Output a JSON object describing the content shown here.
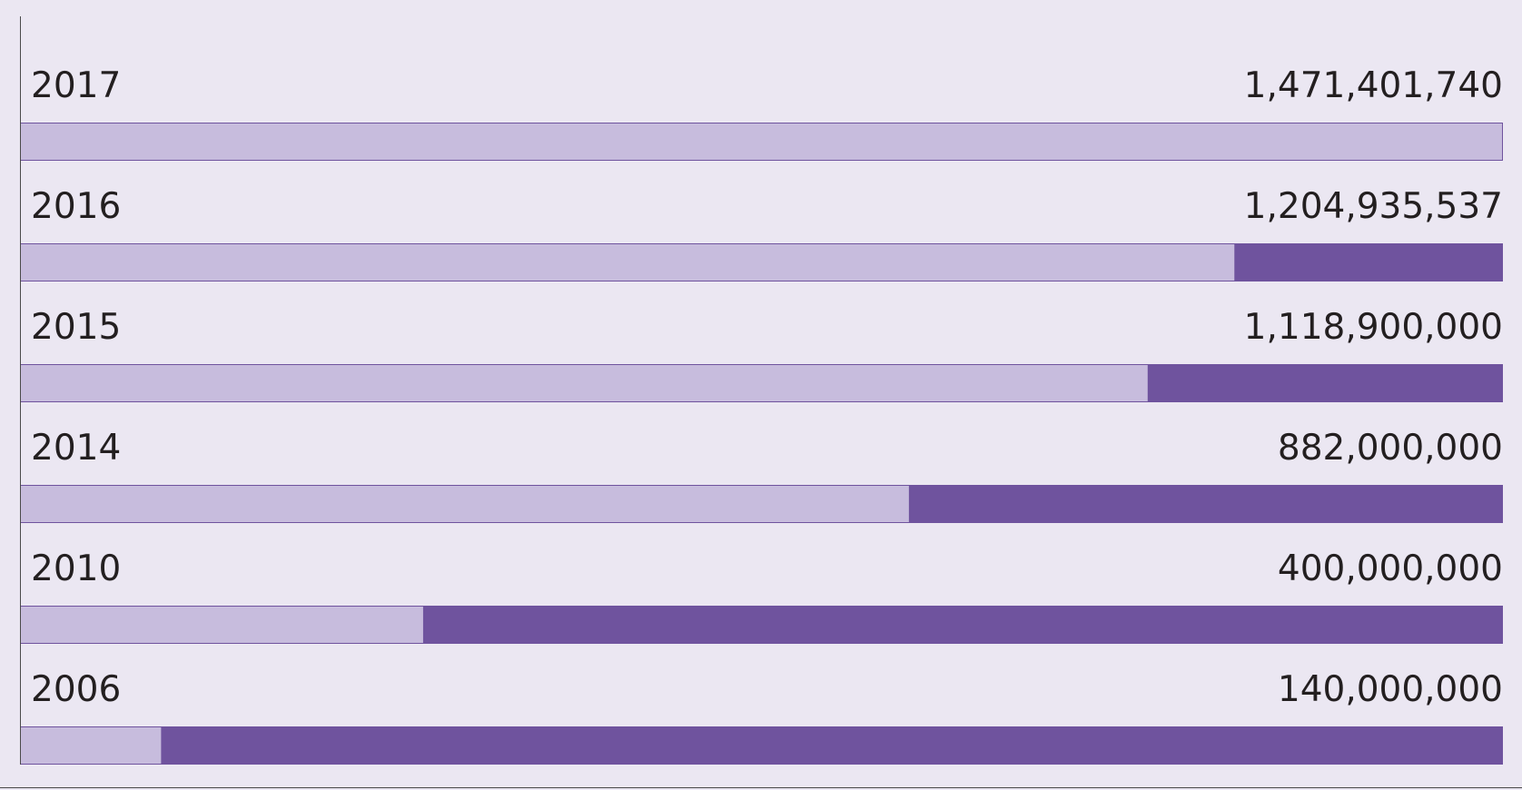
{
  "chart_data": {
    "type": "bar",
    "orientation": "horizontal",
    "categories": [
      "2017",
      "2016",
      "2015",
      "2014",
      "2010",
      "2006"
    ],
    "values": [
      1471401740,
      1204935537,
      1118900000,
      882000000,
      400000000,
      140000000
    ],
    "value_labels": [
      "1,471,401,740",
      "1,204,935,537",
      "1,118,900,000",
      "882,000,000",
      "400,000,000",
      "140,000,000"
    ],
    "title": "",
    "xlabel": "",
    "ylabel": "",
    "xlim": [
      0,
      1471401740
    ],
    "grid": false,
    "legend": "none",
    "colors": {
      "background": "#ebe7f2",
      "value_fill": "#c7bcdd",
      "remainder_fill": "#6f539e",
      "border": "#6f539e",
      "axis": "#4a4a4a",
      "text": "#231f20"
    }
  }
}
